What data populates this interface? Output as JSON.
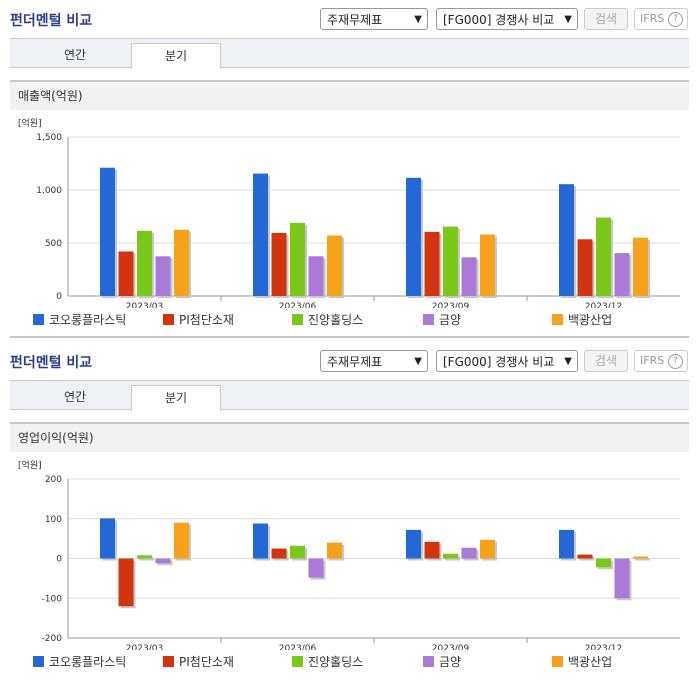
{
  "toolbar": {
    "title": "펀더멘털 비교",
    "select_statement": "주재무제표",
    "select_compare": "[FG000] 경쟁사 비교",
    "search_label": "검색",
    "ifrs_label": "IFRS",
    "help": "?"
  },
  "tabs": [
    "연간",
    "분기"
  ],
  "active_tab": 1,
  "legend": [
    {
      "name": "코오롱플라스틱",
      "color": "#2468d8"
    },
    {
      "name": "PI첨단소재",
      "color": "#d2340f"
    },
    {
      "name": "진양홀딩스",
      "color": "#7cc81a"
    },
    {
      "name": "금양",
      "color": "#a97ad8"
    },
    {
      "name": "백광산업",
      "color": "#f8a11b"
    }
  ],
  "chart_data": [
    {
      "type": "bar",
      "title": "매출액(억원)",
      "unit": "[억원]",
      "categories": [
        "2023/03",
        "2023/06",
        "2023/09",
        "2023/12"
      ],
      "ylim": [
        0,
        1500
      ],
      "yticks": [
        0,
        500,
        1000,
        1500
      ],
      "ytick_labels": [
        "0",
        "500",
        "1,000",
        "1,500"
      ],
      "series": [
        {
          "name": "코오롱플라스틱",
          "values": [
            1210,
            1155,
            1115,
            1055
          ]
        },
        {
          "name": "PI첨단소재",
          "values": [
            420,
            595,
            605,
            535
          ]
        },
        {
          "name": "진양홀딩스",
          "values": [
            615,
            690,
            655,
            740
          ]
        },
        {
          "name": "금양",
          "values": [
            375,
            375,
            365,
            405
          ]
        },
        {
          "name": "백광산업",
          "values": [
            625,
            570,
            580,
            550
          ]
        }
      ]
    },
    {
      "type": "bar",
      "title": "영업이익(억원)",
      "unit": "[억원]",
      "categories": [
        "2023/03",
        "2023/06",
        "2023/09",
        "2023/12"
      ],
      "ylim": [
        -200,
        200
      ],
      "yticks": [
        -200,
        -100,
        0,
        100,
        200
      ],
      "ytick_labels": [
        "-200",
        "-100",
        "0",
        "100",
        "200"
      ],
      "series": [
        {
          "name": "코오롱플라스틱",
          "values": [
            101,
            88,
            72,
            72
          ]
        },
        {
          "name": "PI첨단소재",
          "values": [
            -120,
            25,
            42,
            10
          ]
        },
        {
          "name": "진양홀딩스",
          "values": [
            8,
            32,
            12,
            -22
          ]
        },
        {
          "name": "금양",
          "values": [
            -12,
            -48,
            27,
            -100
          ]
        },
        {
          "name": "백광산업",
          "values": [
            90,
            40,
            47,
            5
          ]
        }
      ]
    }
  ]
}
